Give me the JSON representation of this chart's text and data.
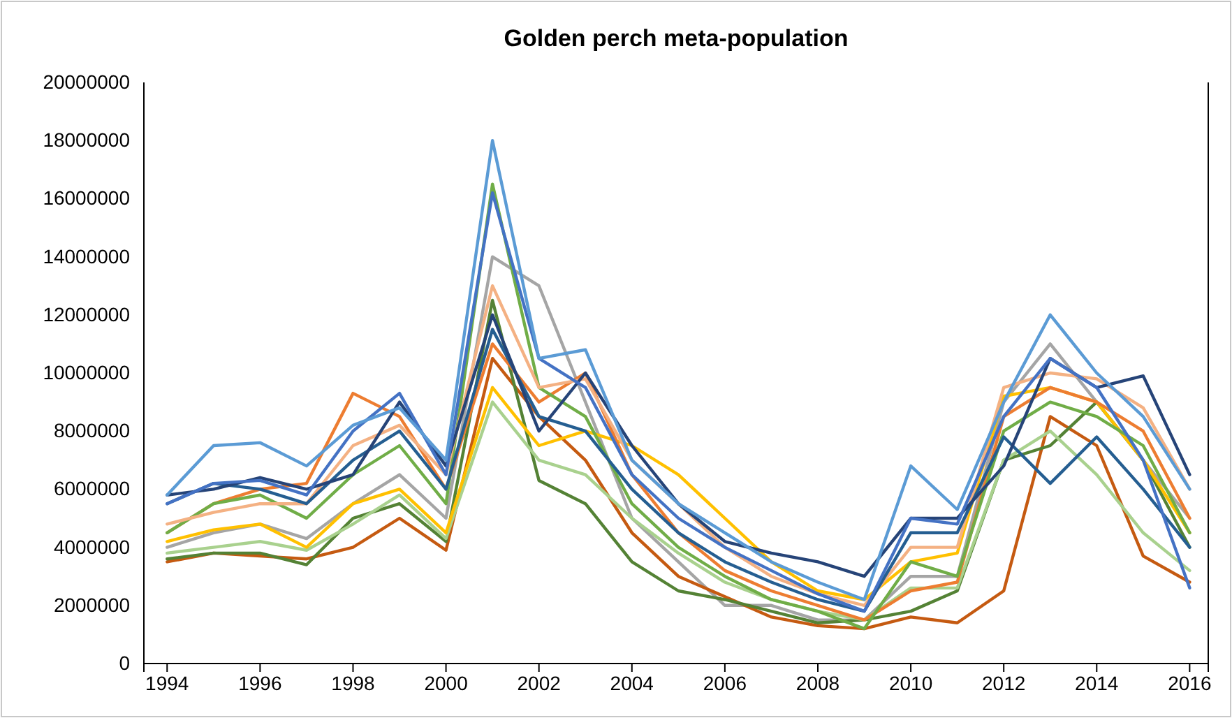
{
  "chart_data": {
    "type": "line",
    "title": "Golden perch meta-population",
    "x": [
      1994,
      1995,
      1996,
      1997,
      1998,
      1999,
      2000,
      2001,
      2002,
      2003,
      2004,
      2005,
      2006,
      2007,
      2008,
      2009,
      2010,
      2011,
      2012,
      2013,
      2014,
      2015,
      2016
    ],
    "xlim": [
      1993.5,
      2016.4
    ],
    "xticks": [
      1994,
      1996,
      1998,
      2000,
      2002,
      2004,
      2006,
      2008,
      2010,
      2012,
      2014,
      2016
    ],
    "ylim": [
      0,
      20000000
    ],
    "yticks": [
      0,
      2000000,
      4000000,
      6000000,
      8000000,
      10000000,
      12000000,
      14000000,
      16000000,
      18000000,
      20000000
    ],
    "grid": false,
    "marker": "none",
    "line_style": "solid",
    "series": [
      {
        "color": "#a5a5a5",
        "values": [
          4000000,
          4500000,
          4800000,
          4300000,
          5500000,
          6500000,
          5000000,
          14000000,
          13000000,
          9000000,
          5000000,
          3500000,
          2000000,
          2000000,
          1500000,
          1500000,
          3000000,
          3000000,
          9000000,
          11000000,
          9000000,
          7000000,
          5000000
        ]
      },
      {
        "color": "#c55a11",
        "values": [
          3500000,
          3800000,
          3700000,
          3600000,
          4000000,
          5000000,
          3900000,
          10500000,
          8500000,
          7000000,
          4500000,
          3000000,
          2300000,
          1600000,
          1300000,
          1200000,
          1600000,
          1400000,
          2500000,
          8500000,
          7500000,
          3700000,
          2800000
        ]
      },
      {
        "color": "#548235",
        "values": [
          3600000,
          3800000,
          3800000,
          3400000,
          5000000,
          5500000,
          4200000,
          12500000,
          6300000,
          5500000,
          3500000,
          2500000,
          2200000,
          1800000,
          1400000,
          1500000,
          1800000,
          2500000,
          7000000,
          7500000,
          9000000,
          7000000,
          4000000
        ]
      },
      {
        "color": "#a9d18e",
        "values": [
          3800000,
          4000000,
          4200000,
          3900000,
          4800000,
          5800000,
          4300000,
          9000000,
          7000000,
          6500000,
          5000000,
          3800000,
          2800000,
          2200000,
          1800000,
          1500000,
          2600000,
          2600000,
          7000000,
          8000000,
          6500000,
          4500000,
          3200000
        ]
      },
      {
        "color": "#ffc000",
        "values": [
          4200000,
          4600000,
          4800000,
          4000000,
          5500000,
          6000000,
          4500000,
          9500000,
          7500000,
          8000000,
          7500000,
          6500000,
          5000000,
          3500000,
          2500000,
          2200000,
          3500000,
          3800000,
          9200000,
          9500000,
          9000000,
          7000000,
          4500000
        ]
      },
      {
        "color": "#ed7d31",
        "values": [
          4500000,
          5500000,
          6000000,
          6200000,
          9300000,
          8500000,
          6000000,
          11000000,
          9000000,
          10000000,
          6500000,
          4500000,
          3200000,
          2500000,
          2000000,
          1500000,
          2500000,
          2800000,
          8500000,
          9500000,
          9000000,
          8000000,
          5000000
        ]
      },
      {
        "color": "#70ad47",
        "values": [
          4500000,
          5500000,
          5800000,
          5000000,
          6500000,
          7500000,
          5500000,
          16500000,
          9500000,
          8500000,
          5500000,
          4000000,
          3000000,
          2200000,
          1800000,
          1200000,
          3500000,
          3000000,
          8000000,
          9000000,
          8500000,
          7500000,
          4500000
        ]
      },
      {
        "color": "#f4b183",
        "values": [
          4800000,
          5200000,
          5500000,
          5500000,
          7500000,
          8200000,
          6500000,
          13000000,
          9500000,
          9800000,
          7000000,
          5500000,
          4000000,
          3000000,
          2400000,
          2000000,
          4000000,
          4000000,
          9500000,
          10000000,
          9800000,
          8800000,
          6000000
        ]
      },
      {
        "color": "#255e91",
        "values": [
          5500000,
          6200000,
          6000000,
          5500000,
          7000000,
          8000000,
          6000000,
          11500000,
          8500000,
          8000000,
          6000000,
          4500000,
          3500000,
          2800000,
          2200000,
          1800000,
          4500000,
          4500000,
          7800000,
          6200000,
          7800000,
          6000000,
          4000000
        ]
      },
      {
        "color": "#264478",
        "values": [
          5800000,
          6000000,
          6400000,
          6000000,
          6500000,
          9000000,
          6800000,
          12000000,
          8000000,
          10000000,
          7500000,
          5500000,
          4200000,
          3800000,
          3500000,
          3000000,
          5000000,
          5000000,
          6800000,
          10500000,
          9500000,
          9900000,
          6500000
        ]
      },
      {
        "color": "#4472c4",
        "values": [
          5500000,
          6200000,
          6300000,
          5800000,
          8000000,
          9300000,
          6500000,
          16200000,
          10500000,
          9500000,
          6500000,
          5000000,
          4000000,
          3200000,
          2400000,
          1800000,
          5000000,
          4800000,
          8500000,
          10500000,
          9500000,
          7000000,
          2600000
        ]
      },
      {
        "color": "#5b9bd5",
        "values": [
          5800000,
          7500000,
          7600000,
          6800000,
          8200000,
          8800000,
          7000000,
          18000000,
          10500000,
          10800000,
          7000000,
          5500000,
          4500000,
          3500000,
          2800000,
          2200000,
          6800000,
          5300000,
          9000000,
          12000000,
          10000000,
          8500000,
          6000000
        ]
      }
    ]
  }
}
